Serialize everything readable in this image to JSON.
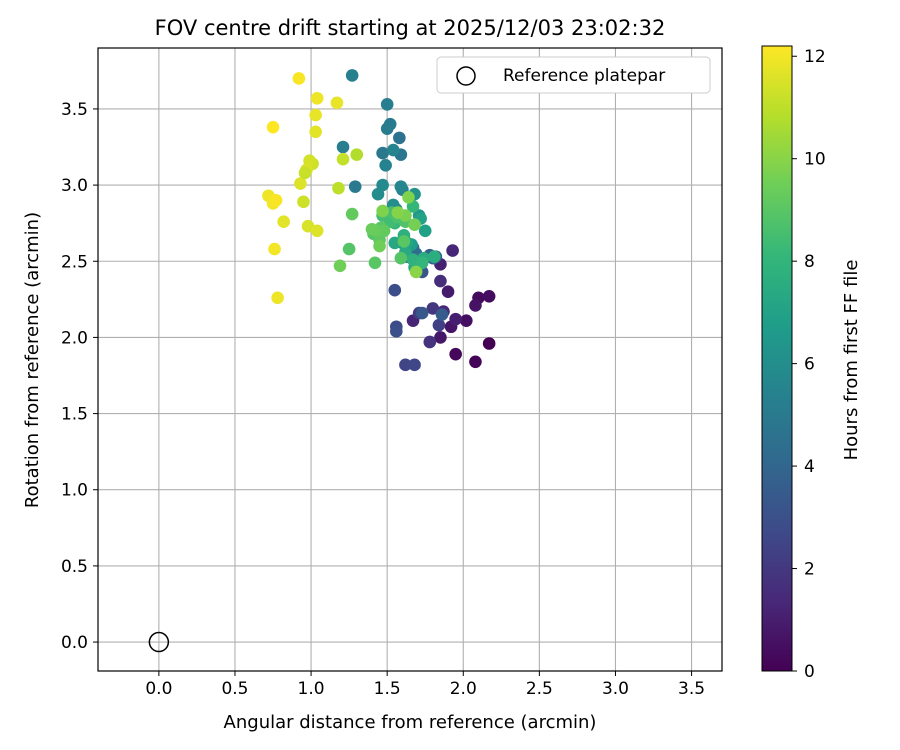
{
  "chart_data": {
    "type": "scatter",
    "title": "FOV centre drift starting at 2025/12/03 23:02:32",
    "xlabel": "Angular distance from reference (arcmin)",
    "ylabel": "Rotation from reference (arcmin)",
    "xlim": [
      -0.4,
      3.7
    ],
    "ylim": [
      -0.19,
      3.9
    ],
    "xticks": [
      "0.0",
      "0.5",
      "1.0",
      "1.5",
      "2.0",
      "2.5",
      "3.0",
      "3.5"
    ],
    "yticks": [
      "0.0",
      "0.5",
      "1.0",
      "1.5",
      "2.0",
      "2.5",
      "3.0",
      "3.5"
    ],
    "grid": true,
    "legend": {
      "location": "top-right",
      "entries": [
        "Reference platepar"
      ]
    },
    "reference": {
      "name": "Reference platepar",
      "x": 0.0,
      "y": 0.0,
      "marker": "hollow-circle"
    },
    "colorbar": {
      "label": "Hours from first FF file",
      "colormap": "viridis",
      "range": [
        0,
        12.2
      ],
      "ticks": [
        "0",
        "2",
        "4",
        "6",
        "8",
        "10",
        "12"
      ]
    },
    "colormap_stops": [
      "#440154",
      "#482878",
      "#3e4a89",
      "#31688e",
      "#26828e",
      "#1f9e89",
      "#35b779",
      "#6ece58",
      "#b5de2b",
      "#fde725"
    ],
    "series": [
      {
        "x": [
          2.17,
          2.08,
          1.95,
          2.1,
          2.17,
          2.02,
          2.08,
          1.92,
          1.85,
          1.9,
          1.95,
          1.85,
          1.67,
          1.93,
          1.87,
          1.85,
          1.78,
          1.8,
          1.71,
          1.84,
          1.62,
          1.68,
          1.56,
          1.55,
          1.56,
          1.73,
          1.73,
          1.82,
          1.86,
          1.71,
          1.78,
          1.8,
          1.69,
          1.67,
          1.63,
          1.58,
          1.59,
          1.47,
          1.52,
          1.5,
          1.5,
          1.6,
          1.49,
          1.54,
          1.59,
          1.56,
          1.47,
          1.44,
          1.54,
          1.68,
          1.71,
          1.6,
          1.53,
          1.66,
          1.75,
          1.72,
          1.63,
          1.68,
          1.55,
          1.62,
          1.29,
          1.21,
          1.27,
          1.74,
          1.81,
          1.61,
          1.67,
          1.69,
          1.73,
          1.67,
          1.55,
          1.61,
          1.52,
          1.47,
          1.53,
          1.57,
          1.62,
          1.59,
          1.61,
          1.41,
          1.46,
          1.45,
          1.48,
          1.43,
          1.4,
          1.45,
          1.68,
          1.62,
          1.64,
          1.57,
          1.69,
          1.47,
          1.25,
          1.27,
          1.42,
          1.19,
          1.3,
          1.18,
          1.21,
          1.01,
          0.99,
          0.97,
          0.93,
          0.96,
          0.95,
          1.03,
          1.03,
          0.98,
          1.04,
          1.04,
          1.17,
          0.92,
          0.82,
          0.72,
          0.75,
          0.77,
          0.75,
          0.76,
          0.78
        ],
        "y": [
          1.96,
          1.84,
          1.89,
          2.26,
          2.27,
          2.11,
          2.21,
          2.07,
          2.0,
          2.3,
          2.12,
          2.48,
          2.11,
          2.57,
          2.17,
          2.37,
          1.97,
          2.19,
          2.16,
          2.08,
          1.82,
          1.82,
          2.07,
          2.31,
          2.04,
          2.43,
          2.16,
          2.53,
          2.15,
          2.47,
          2.54,
          2.52,
          2.55,
          2.59,
          2.53,
          3.31,
          3.2,
          3.21,
          3.4,
          3.37,
          3.53,
          2.97,
          3.13,
          3.23,
          2.99,
          2.84,
          3.0,
          2.94,
          2.87,
          2.94,
          2.8,
          2.62,
          2.76,
          2.61,
          2.7,
          2.78,
          2.62,
          2.46,
          2.62,
          2.56,
          2.99,
          3.25,
          3.72,
          2.52,
          2.53,
          2.67,
          2.51,
          2.44,
          2.49,
          2.86,
          2.75,
          2.78,
          2.76,
          2.8,
          2.82,
          2.79,
          2.76,
          2.52,
          2.63,
          2.68,
          2.72,
          2.64,
          2.7,
          2.7,
          2.71,
          2.6,
          2.74,
          2.8,
          2.92,
          2.82,
          2.43,
          2.83,
          2.58,
          2.81,
          2.49,
          2.47,
          3.2,
          2.98,
          3.17,
          3.14,
          3.16,
          3.1,
          3.01,
          3.08,
          2.89,
          3.35,
          3.46,
          2.73,
          2.7,
          3.57,
          3.54,
          3.7,
          2.76,
          2.93,
          2.88,
          2.9,
          3.38,
          2.58,
          2.26
        ],
        "c": [
          0.0,
          0.1,
          0.2,
          0.3,
          0.4,
          0.5,
          0.6,
          0.7,
          0.8,
          0.9,
          1.0,
          1.1,
          1.2,
          1.3,
          1.4,
          1.6,
          1.8,
          2.0,
          2.2,
          2.3,
          2.5,
          2.6,
          2.8,
          2.9,
          3.0,
          3.2,
          3.3,
          3.5,
          3.5,
          3.7,
          3.8,
          4.0,
          4.2,
          4.3,
          4.5,
          4.6,
          4.8,
          4.9,
          5.0,
          5.1,
          5.2,
          5.3,
          5.4,
          5.5,
          5.6,
          5.7,
          5.8,
          5.9,
          6.0,
          6.2,
          6.4,
          6.5,
          6.6,
          6.8,
          6.9,
          7.0,
          7.1,
          7.2,
          7.3,
          7.4,
          5.0,
          5.2,
          5.3,
          7.5,
          7.6,
          7.7,
          7.8,
          7.9,
          8.0,
          8.1,
          8.2,
          8.3,
          8.4,
          8.5,
          8.6,
          8.7,
          8.8,
          8.9,
          9.0,
          8.9,
          9.0,
          9.1,
          9.2,
          9.3,
          9.4,
          9.5,
          9.6,
          9.7,
          9.8,
          9.9,
          10.0,
          9.8,
          8.9,
          9.2,
          9.0,
          9.5,
          10.8,
          11.0,
          11.1,
          11.3,
          11.4,
          11.5,
          11.6,
          11.2,
          11.3,
          11.7,
          11.8,
          11.5,
          11.6,
          11.9,
          11.8,
          12.1,
          11.7,
          11.9,
          12.0,
          12.1,
          12.2,
          12.0,
          11.9
        ]
      }
    ]
  }
}
